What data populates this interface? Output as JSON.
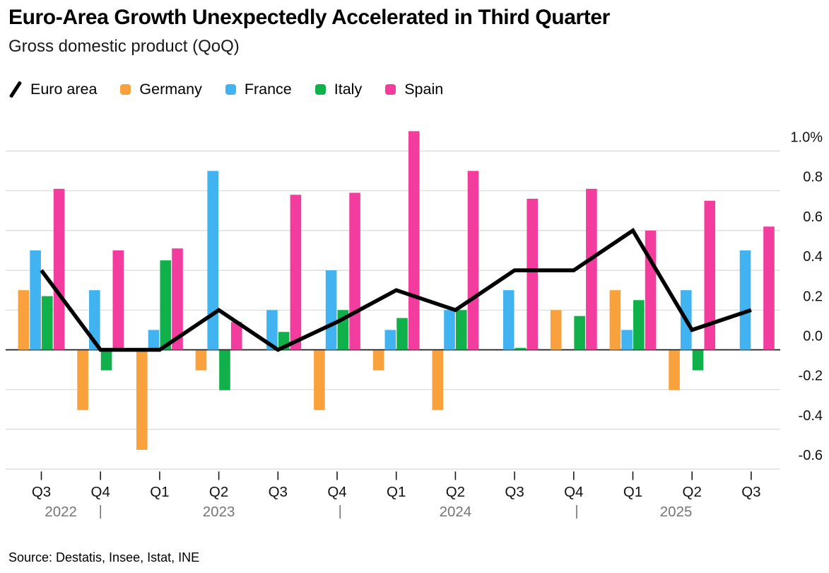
{
  "header": {
    "title": "Euro-Area Growth Unexpectedly Accelerated in Third Quarter",
    "subtitle": "Gross domestic product (QoQ)"
  },
  "legend": {
    "items": [
      {
        "label": "Euro area",
        "swatch": "line",
        "color": "#000000"
      },
      {
        "label": "Germany",
        "swatch": "square",
        "color": "#F9A13C"
      },
      {
        "label": "France",
        "swatch": "square",
        "color": "#41B3F0"
      },
      {
        "label": "Italy",
        "swatch": "square",
        "color": "#10B04B"
      },
      {
        "label": "Spain",
        "swatch": "square",
        "color": "#F23C9E"
      }
    ]
  },
  "source": "Source: Destatis, Insee, Istat, INE",
  "chart_data": {
    "type": "bar",
    "title": "Euro-Area Growth Unexpectedly Accelerated in Third Quarter",
    "subtitle": "Gross domestic product (QoQ)",
    "unit": "%",
    "grid": "horizontal",
    "legend_position": "top",
    "categories": [
      "Q3 2022",
      "Q4 2022",
      "Q1 2023",
      "Q2 2023",
      "Q3 2023",
      "Q4 2023",
      "Q1 2024",
      "Q2 2024",
      "Q3 2024",
      "Q4 2024",
      "Q1 2025",
      "Q2 2025",
      "Q3 2025"
    ],
    "x_tick_labels": [
      "Q3",
      "Q4",
      "Q1",
      "Q2",
      "Q3",
      "Q4",
      "Q1",
      "Q2",
      "Q3",
      "Q4",
      "Q1",
      "Q2",
      "Q3"
    ],
    "line_series": {
      "name": "Euro area",
      "color": "#000000",
      "values": [
        0.4,
        0.0,
        0.0,
        0.2,
        0.0,
        0.14,
        0.3,
        0.2,
        0.4,
        0.4,
        0.6,
        0.1,
        0.2
      ]
    },
    "bar_series": [
      {
        "name": "Germany",
        "color": "#F9A13C",
        "values": [
          0.3,
          -0.3,
          -0.5,
          -0.1,
          0.0,
          -0.3,
          -0.1,
          -0.3,
          0.0,
          0.2,
          0.3,
          -0.2,
          0.0
        ]
      },
      {
        "name": "France",
        "color": "#41B3F0",
        "values": [
          0.5,
          0.3,
          0.1,
          0.9,
          0.2,
          0.4,
          0.1,
          0.2,
          0.3,
          0.0,
          0.1,
          0.3,
          0.5
        ]
      },
      {
        "name": "Italy",
        "color": "#10B04B",
        "values": [
          0.27,
          -0.1,
          0.45,
          -0.2,
          0.09,
          0.2,
          0.16,
          0.2,
          0.01,
          0.17,
          0.25,
          -0.1,
          0.0
        ]
      },
      {
        "name": "Spain",
        "color": "#F23C9E",
        "values": [
          0.81,
          0.5,
          0.51,
          0.14,
          0.78,
          0.79,
          1.1,
          0.9,
          0.76,
          0.81,
          0.6,
          0.75,
          0.62
        ]
      }
    ],
    "y_axis": {
      "side": "right",
      "ylim": [
        -0.72,
        1.12
      ],
      "ticks": [
        {
          "value": 1.0,
          "label": "1.0%"
        },
        {
          "value": 0.8,
          "label": "0.8"
        },
        {
          "value": 0.6,
          "label": "0.6"
        },
        {
          "value": 0.4,
          "label": "0.4"
        },
        {
          "value": 0.2,
          "label": "0.2"
        },
        {
          "value": 0.0,
          "label": "0.0"
        },
        {
          "value": -0.2,
          "label": "-0.2"
        },
        {
          "value": -0.4,
          "label": "-0.4"
        },
        {
          "value": -0.6,
          "label": "-0.6"
        }
      ]
    },
    "x_axis": {
      "years": [
        {
          "label": "2022",
          "position_index": 0.33
        },
        {
          "label": "2023",
          "position_index": 3.0
        },
        {
          "label": "2024",
          "position_index": 7.0
        },
        {
          "label": "2025",
          "position_index": 10.73
        }
      ],
      "separator": "|",
      "separator_indices": [
        1.0,
        5.05,
        9.05
      ]
    }
  }
}
